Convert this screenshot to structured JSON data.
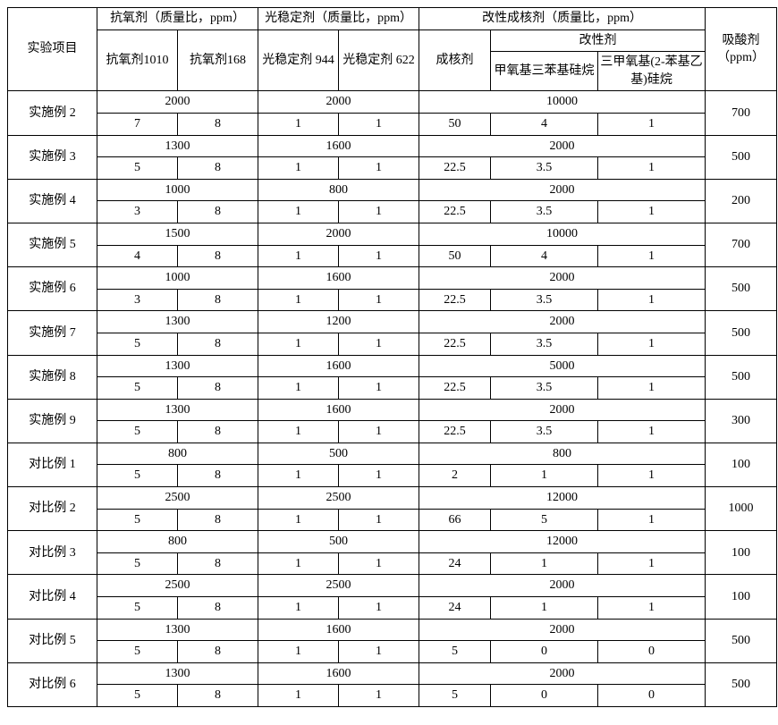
{
  "header": {
    "experiment": "实验项目",
    "antioxidant_group": "抗氧剂（质量比，ppm）",
    "antioxidant_1010": "抗氧剂1010",
    "antioxidant_168": "抗氧剂168",
    "light_stabilizer_group": "光稳定剂（质量比，ppm）",
    "light_944": "光稳定剂 944",
    "light_622": "光稳定剂 622",
    "nucleating_group": "改性成核剂（质量比，ppm）",
    "nucleating_agent": "成核剂",
    "modifier_group": "改性剂",
    "modifier_a": "甲氧基三苯基硅烷",
    "modifier_b": "三甲氧基(2-苯基乙基)硅烷",
    "acid_scavenger": "吸酸剂（ppm）"
  },
  "rows": [
    {
      "name": "实施例 2",
      "ao_total": "2000",
      "ls_total": "2000",
      "nu_total": "10000",
      "acid": "700",
      "ao1": "7",
      "ao2": "8",
      "ls1": "1",
      "ls2": "1",
      "nu": "50",
      "ma": "4",
      "mb": "1"
    },
    {
      "name": "实施例 3",
      "ao_total": "1300",
      "ls_total": "1600",
      "nu_total": "2000",
      "acid": "500",
      "ao1": "5",
      "ao2": "8",
      "ls1": "1",
      "ls2": "1",
      "nu": "22.5",
      "ma": "3.5",
      "mb": "1"
    },
    {
      "name": "实施例 4",
      "ao_total": "1000",
      "ls_total": "800",
      "nu_total": "2000",
      "acid": "200",
      "ao1": "3",
      "ao2": "8",
      "ls1": "1",
      "ls2": "1",
      "nu": "22.5",
      "ma": "3.5",
      "mb": "1"
    },
    {
      "name": "实施例 5",
      "ao_total": "1500",
      "ls_total": "2000",
      "nu_total": "10000",
      "acid": "700",
      "ao1": "4",
      "ao2": "8",
      "ls1": "1",
      "ls2": "1",
      "nu": "50",
      "ma": "4",
      "mb": "1"
    },
    {
      "name": "实施例 6",
      "ao_total": "1000",
      "ls_total": "1600",
      "nu_total": "2000",
      "acid": "500",
      "ao1": "3",
      "ao2": "8",
      "ls1": "1",
      "ls2": "1",
      "nu": "22.5",
      "ma": "3.5",
      "mb": "1"
    },
    {
      "name": "实施例 7",
      "ao_total": "1300",
      "ls_total": "1200",
      "nu_total": "2000",
      "acid": "500",
      "ao1": "5",
      "ao2": "8",
      "ls1": "1",
      "ls2": "1",
      "nu": "22.5",
      "ma": "3.5",
      "mb": "1"
    },
    {
      "name": "实施例 8",
      "ao_total": "1300",
      "ls_total": "1600",
      "nu_total": "5000",
      "acid": "500",
      "ao1": "5",
      "ao2": "8",
      "ls1": "1",
      "ls2": "1",
      "nu": "22.5",
      "ma": "3.5",
      "mb": "1"
    },
    {
      "name": "实施例 9",
      "ao_total": "1300",
      "ls_total": "1600",
      "nu_total": "2000",
      "acid": "300",
      "ao1": "5",
      "ao2": "8",
      "ls1": "1",
      "ls2": "1",
      "nu": "22.5",
      "ma": "3.5",
      "mb": "1"
    },
    {
      "name": "对比例 1",
      "ao_total": "800",
      "ls_total": "500",
      "nu_total": "800",
      "acid": "100",
      "ao1": "5",
      "ao2": "8",
      "ls1": "1",
      "ls2": "1",
      "nu": "2",
      "ma": "1",
      "mb": "1"
    },
    {
      "name": "对比例 2",
      "ao_total": "2500",
      "ls_total": "2500",
      "nu_total": "12000",
      "acid": "1000",
      "ao1": "5",
      "ao2": "8",
      "ls1": "1",
      "ls2": "1",
      "nu": "66",
      "ma": "5",
      "mb": "1"
    },
    {
      "name": "对比例 3",
      "ao_total": "800",
      "ls_total": "500",
      "nu_total": "12000",
      "acid": "100",
      "ao1": "5",
      "ao2": "8",
      "ls1": "1",
      "ls2": "1",
      "nu": "24",
      "ma": "1",
      "mb": "1"
    },
    {
      "name": "对比例 4",
      "ao_total": "2500",
      "ls_total": "2500",
      "nu_total": "2000",
      "acid": "100",
      "ao1": "5",
      "ao2": "8",
      "ls1": "1",
      "ls2": "1",
      "nu": "24",
      "ma": "1",
      "mb": "1"
    },
    {
      "name": "对比例 5",
      "ao_total": "1300",
      "ls_total": "1600",
      "nu_total": "2000",
      "acid": "500",
      "ao1": "5",
      "ao2": "8",
      "ls1": "1",
      "ls2": "1",
      "nu": "5",
      "ma": "0",
      "mb": "0"
    },
    {
      "name": "对比例 6",
      "ao_total": "1300",
      "ls_total": "1600",
      "nu_total": "2000",
      "acid": "500",
      "ao1": "5",
      "ao2": "8",
      "ls1": "1",
      "ls2": "1",
      "nu": "5",
      "ma": "0",
      "mb": "0"
    }
  ]
}
